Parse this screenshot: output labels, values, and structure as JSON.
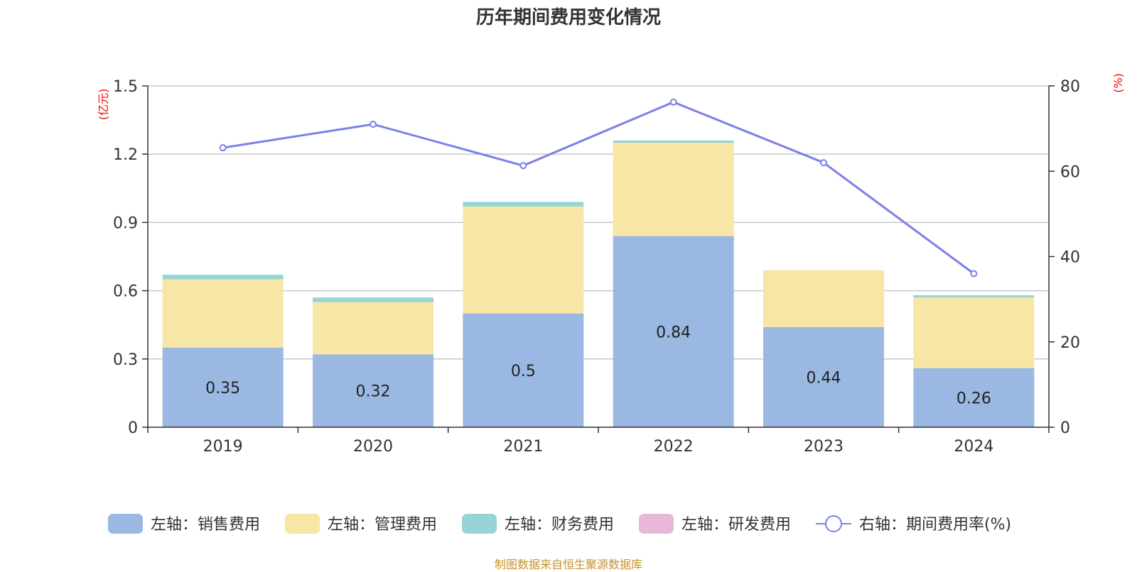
{
  "title": "历年期间费用变化情况",
  "footer": "制图数据来自恒生聚源数据库",
  "colors": {
    "sales": "#9bb8e3",
    "admin": "#f7e6a6",
    "finance": "#96d4d6",
    "rnd": "#e8b8da",
    "rate": "#7b7fe8",
    "unit": "#ff0000",
    "grid": "#c8c8c8",
    "footer": "#c8922a"
  },
  "chart_data": {
    "type": "bar",
    "stacked": true,
    "title": "历年期间费用变化情况",
    "categories": [
      "2019",
      "2020",
      "2021",
      "2022",
      "2023",
      "2024"
    ],
    "y_left": {
      "unit": "(亿元)",
      "ylim": [
        0,
        1.5
      ],
      "ticks": [
        "0",
        "0.3",
        "0.6",
        "0.9",
        "1.2",
        "1.5"
      ]
    },
    "y_right": {
      "unit": "(%)",
      "ylim": [
        0,
        80
      ],
      "ticks": [
        "0",
        "20",
        "40",
        "60",
        "80"
      ]
    },
    "series": [
      {
        "name": "左轴：销售费用",
        "axis": "left",
        "type": "bar",
        "values": [
          0.35,
          0.32,
          0.5,
          0.84,
          0.44,
          0.26
        ],
        "labels": [
          "0.35",
          "0.32",
          "0.5",
          "0.84",
          "0.44",
          "0.26"
        ]
      },
      {
        "name": "左轴：管理费用",
        "axis": "left",
        "type": "bar",
        "values": [
          0.3,
          0.23,
          0.47,
          0.41,
          0.25,
          0.31
        ]
      },
      {
        "name": "左轴：财务费用",
        "axis": "left",
        "type": "bar",
        "values": [
          0.02,
          0.02,
          0.02,
          0.01,
          0.0,
          0.01
        ]
      },
      {
        "name": "左轴：研发费用",
        "axis": "left",
        "type": "bar",
        "values": [
          0,
          0,
          0,
          0,
          0,
          0
        ]
      },
      {
        "name": "右轴：期间费用率(%)",
        "axis": "right",
        "type": "line",
        "values": [
          65.5,
          71,
          61.3,
          76.2,
          62,
          36
        ]
      }
    ],
    "grid": true,
    "legend_position": "bottom"
  }
}
